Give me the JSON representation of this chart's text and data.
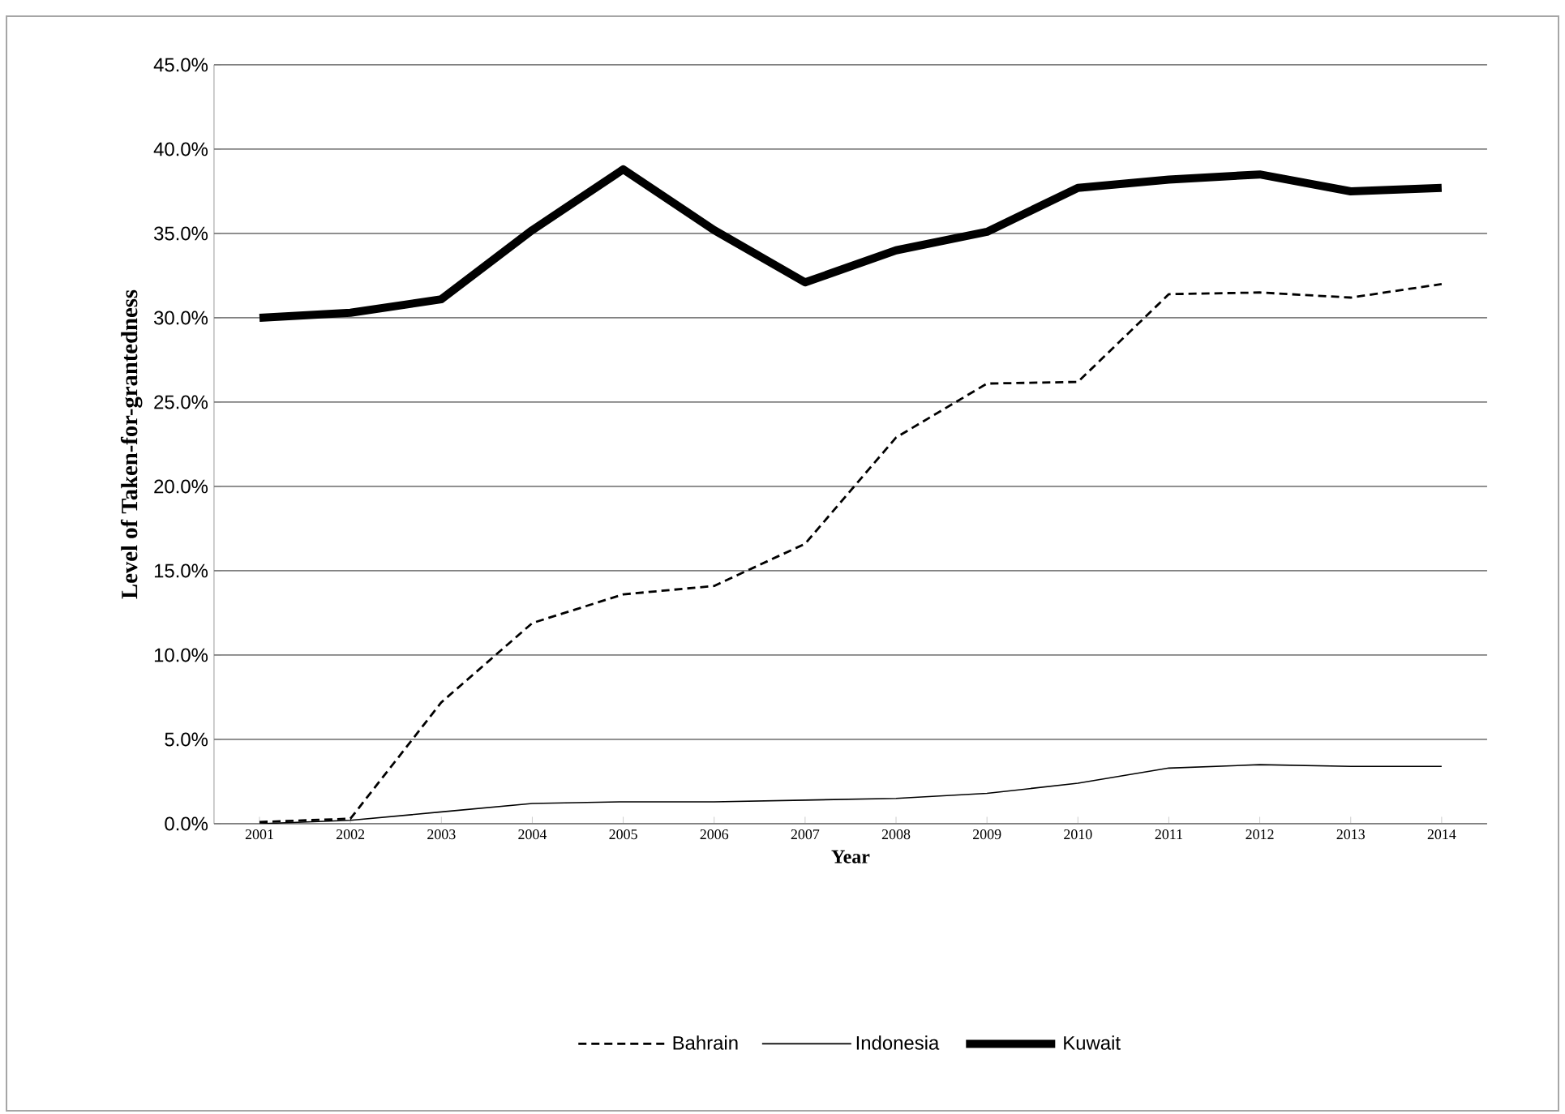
{
  "chart_data": {
    "type": "line",
    "xlabel": "Year",
    "ylabel": "Level of Taken-for-grantedness",
    "categories": [
      "2001",
      "2002",
      "2003",
      "2004",
      "2005",
      "2006",
      "2007",
      "2008",
      "2009",
      "2010",
      "2011",
      "2012",
      "2013",
      "2014"
    ],
    "series": [
      {
        "name": "Bahrain",
        "color": "#000000",
        "line_style": "dashed",
        "values": [
          0.1,
          0.3,
          7.2,
          11.9,
          13.6,
          14.1,
          16.6,
          22.9,
          26.1,
          26.2,
          31.4,
          31.5,
          31.2,
          32.0
        ]
      },
      {
        "name": "Indonesia",
        "color": "#000000",
        "line_style": "solid",
        "values": [
          0.0,
          0.2,
          0.7,
          1.2,
          1.3,
          1.3,
          1.4,
          1.5,
          1.8,
          2.4,
          3.3,
          3.5,
          3.4,
          3.4
        ]
      },
      {
        "name": "Kuwait",
        "color": "#000000",
        "line_style": "solid",
        "values": [
          30.0,
          30.3,
          31.1,
          35.2,
          38.8,
          35.2,
          32.1,
          34.0,
          35.1,
          37.7,
          38.2,
          38.5,
          37.5,
          37.7
        ]
      }
    ],
    "ylim": [
      0,
      45
    ],
    "yticks": [
      {
        "value": 0,
        "label": "0.0%"
      },
      {
        "value": 5,
        "label": "5.0%"
      },
      {
        "value": 10,
        "label": "10.0%"
      },
      {
        "value": 15,
        "label": "15.0%"
      },
      {
        "value": 20,
        "label": "20.0%"
      },
      {
        "value": 25,
        "label": "25.0%"
      },
      {
        "value": 30,
        "label": "30.0%"
      },
      {
        "value": 35,
        "label": "35.0%"
      },
      {
        "value": 40,
        "label": "40.0%"
      },
      {
        "value": 45,
        "label": "45.0%"
      }
    ],
    "grid": "y",
    "legend": "bottom",
    "marker": "none"
  }
}
